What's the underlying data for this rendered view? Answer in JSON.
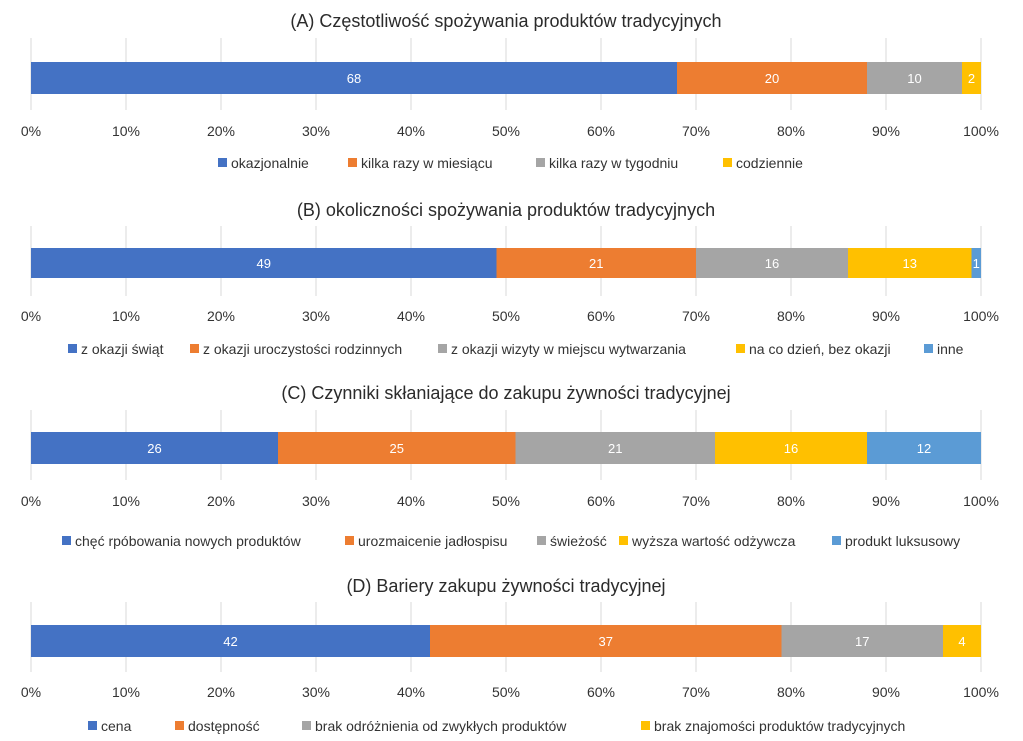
{
  "chart_data": [
    {
      "type": "bar",
      "stacked": true,
      "orientation": "horizontal",
      "title": "(A)  Częstotliwość spożywania produktów  tradycyjnych",
      "xlim": [
        0,
        100
      ],
      "ticks": [
        "0%",
        "10%",
        "20%",
        "30%",
        "40%",
        "50%",
        "60%",
        "70%",
        "80%",
        "90%",
        "100%"
      ],
      "legend_position": "bottom",
      "series": [
        {
          "name": "okazjonalnie",
          "value": 68,
          "color": "#4472C4"
        },
        {
          "name": "kilka razy w miesiącu",
          "value": 20,
          "color": "#ED7D31"
        },
        {
          "name": "kilka razy w tygodniu",
          "value": 10,
          "color": "#A5A5A5"
        },
        {
          "name": "codziennie",
          "value": 2,
          "color": "#FFC000"
        }
      ]
    },
    {
      "type": "bar",
      "stacked": true,
      "orientation": "horizontal",
      "title": "(B) okoliczności spożywania produktów  tradycyjnych",
      "xlim": [
        0,
        100
      ],
      "ticks": [
        "0%",
        "10%",
        "20%",
        "30%",
        "40%",
        "50%",
        "60%",
        "70%",
        "80%",
        "90%",
        "100%"
      ],
      "legend_position": "bottom",
      "series": [
        {
          "name": "z okazji świąt",
          "value": 49,
          "color": "#4472C4"
        },
        {
          "name": "z okazji uroczystości rodzinnych",
          "value": 21,
          "color": "#ED7D31"
        },
        {
          "name": "z okazji wizyty w miejscu wytwarzania",
          "value": 16,
          "color": "#A5A5A5"
        },
        {
          "name": "na co dzień, bez okazji",
          "value": 13,
          "color": "#FFC000"
        },
        {
          "name": "inne",
          "value": 1,
          "color": "#5B9BD5"
        }
      ]
    },
    {
      "type": "bar",
      "stacked": true,
      "orientation": "horizontal",
      "title": "(C) Czynniki skłaniające do zakupu  żywności tradycyjnej",
      "xlim": [
        0,
        100
      ],
      "ticks": [
        "0%",
        "10%",
        "20%",
        "30%",
        "40%",
        "50%",
        "60%",
        "70%",
        "80%",
        "90%",
        "100%"
      ],
      "legend_position": "bottom",
      "series": [
        {
          "name": "chęć rpóbowania nowych produktów",
          "value": 26,
          "color": "#4472C4"
        },
        {
          "name": "urozmaicenie jadłospisu",
          "value": 25,
          "color": "#ED7D31"
        },
        {
          "name": "świeżość",
          "value": 21,
          "color": "#A5A5A5"
        },
        {
          "name": "wyższa wartość odżywcza",
          "value": 16,
          "color": "#FFC000"
        },
        {
          "name": "produkt luksusowy",
          "value": 12,
          "color": "#5B9BD5"
        }
      ]
    },
    {
      "type": "bar",
      "stacked": true,
      "orientation": "horizontal",
      "title": "(D) Bariery zakupu  żywności tradycyjnej",
      "xlim": [
        0,
        100
      ],
      "ticks": [
        "0%",
        "10%",
        "20%",
        "30%",
        "40%",
        "50%",
        "60%",
        "70%",
        "80%",
        "90%",
        "100%"
      ],
      "legend_position": "bottom",
      "series": [
        {
          "name": "cena",
          "value": 42,
          "color": "#4472C4"
        },
        {
          "name": "dostępność",
          "value": 37,
          "color": "#ED7D31"
        },
        {
          "name": "brak odróżnienia od zwykłych produktów",
          "value": 17,
          "color": "#A5A5A5"
        },
        {
          "name": "brak znajomości produktów tradycyjnych",
          "value": 4,
          "color": "#FFC000"
        }
      ]
    }
  ]
}
